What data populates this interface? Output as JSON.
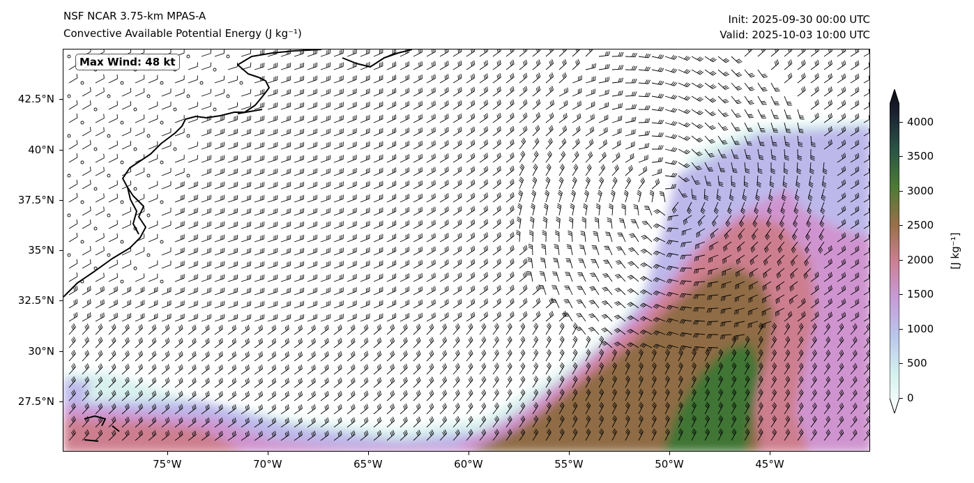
{
  "header": {
    "model": "NSF NCAR 3.75-km MPAS-A",
    "field": "Convective Available Potential Energy (J kg⁻¹)",
    "init": "Init: 2025-09-30 00:00 UTC",
    "valid": "Valid: 2025-10-03 10:00 UTC"
  },
  "annotation": {
    "max_wind": "Max Wind: 48 kt"
  },
  "map": {
    "projection": "PlateCarree",
    "lon_range": [
      -80.2,
      -40.0
    ],
    "lat_range": [
      25.0,
      45.0
    ],
    "lat_ticks": [
      {
        "value": 42.5,
        "label": "42.5°N"
      },
      {
        "value": 40.0,
        "label": "40°N"
      },
      {
        "value": 37.5,
        "label": "37.5°N"
      },
      {
        "value": 35.0,
        "label": "35°N"
      },
      {
        "value": 32.5,
        "label": "32.5°N"
      },
      {
        "value": 30.0,
        "label": "30°N"
      },
      {
        "value": 27.5,
        "label": "27.5°N"
      }
    ],
    "lon_ticks": [
      {
        "value": -75,
        "label": "75°W"
      },
      {
        "value": -70,
        "label": "70°W"
      },
      {
        "value": -65,
        "label": "65°W"
      },
      {
        "value": -60,
        "label": "60°W"
      },
      {
        "value": -55,
        "label": "55°W"
      },
      {
        "value": -50,
        "label": "50°W"
      },
      {
        "value": -45,
        "label": "45°W"
      }
    ],
    "features": [
      "coastline",
      "wind-barbs",
      "cape-shading"
    ]
  },
  "colorbar": {
    "title": "[J kg⁻¹]",
    "range": [
      0,
      4250
    ],
    "extend": "both",
    "colors": [
      "#ffffff",
      "#d6f2ee",
      "#b9c6ec",
      "#c79ad6",
      "#cc7f92",
      "#99704a",
      "#4d7a35",
      "#2b5546",
      "#1b2030",
      "#0d0d12"
    ],
    "ticks": [
      {
        "value": 0,
        "label": "0"
      },
      {
        "value": 500,
        "label": "500"
      },
      {
        "value": 1000,
        "label": "1000"
      },
      {
        "value": 1500,
        "label": "1500"
      },
      {
        "value": 2000,
        "label": "2000"
      },
      {
        "value": 2500,
        "label": "2500"
      },
      {
        "value": 3000,
        "label": "3000"
      },
      {
        "value": 3500,
        "label": "3500"
      },
      {
        "value": 4000,
        "label": "4000"
      }
    ]
  }
}
